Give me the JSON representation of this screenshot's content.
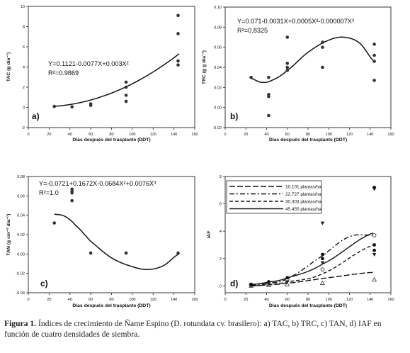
{
  "caption": {
    "label": "Figura 1.",
    "text": "Índices de crecimiento de Ñame Espino (D. rotundata cv. brasilero): a) TAC, b) TRC, c) TAN, d) IAF en función de cuatro densidades de siembra."
  },
  "chart_data": [
    {
      "panel": "a)",
      "type": "scatter",
      "xlabel": "Días después del trasplante (DDT)",
      "ylabel": "TAC (g día⁻¹)",
      "xlim": [
        0,
        160
      ],
      "ylim": [
        -2,
        10
      ],
      "xticks": [
        0,
        20,
        40,
        60,
        80,
        100,
        120,
        140,
        160
      ],
      "yticks": [
        -2,
        0,
        2,
        4,
        6,
        8,
        10
      ],
      "points": [
        [
          25,
          0.1
        ],
        [
          42,
          0.05
        ],
        [
          60,
          0.35
        ],
        [
          60,
          0.2
        ],
        [
          94,
          0.6
        ],
        [
          94,
          1.2
        ],
        [
          94,
          2.0
        ],
        [
          94,
          2.5
        ],
        [
          144,
          4.2
        ],
        [
          144,
          4.6
        ],
        [
          144,
          7.3
        ],
        [
          144,
          9.1
        ]
      ],
      "fit": {
        "coef": [
          0.1121,
          -0.0077,
          0.003
        ],
        "xrange": [
          25,
          145
        ]
      },
      "equation": "Y=0.1121-0.0077X+0.003X²",
      "r2": "R²=0.9869",
      "grid": false
    },
    {
      "panel": "b)",
      "type": "scatter",
      "xlabel": "Días después del trasplante (DDT)",
      "ylabel": "TRC (g g día⁻¹)",
      "xlim": [
        0,
        160
      ],
      "ylim": [
        -0.02,
        0.1
      ],
      "xticks": [
        0,
        20,
        40,
        60,
        80,
        100,
        120,
        140,
        160
      ],
      "yticks": [
        -0.02,
        0.0,
        0.02,
        0.04,
        0.06,
        0.08,
        0.1
      ],
      "points": [
        [
          25,
          0.03
        ],
        [
          42,
          0.03
        ],
        [
          42,
          0.013
        ],
        [
          42,
          0.011
        ],
        [
          42,
          -0.008
        ],
        [
          60,
          0.07
        ],
        [
          60,
          0.044
        ],
        [
          60,
          0.04
        ],
        [
          60,
          0.037
        ],
        [
          94,
          0.065
        ],
        [
          94,
          0.06
        ],
        [
          94,
          0.04
        ],
        [
          144,
          0.063
        ],
        [
          144,
          0.052
        ],
        [
          144,
          0.046
        ],
        [
          144,
          0.027
        ]
      ],
      "fit": {
        "coef": [
          0.071,
          -0.0031,
          0.0005,
          -7e-06
        ],
        "xrange": [
          25,
          145
        ]
      },
      "equation": "Y=0.071-0.0031X+0.0005X²-0.000007X³",
      "r2": "R²=0.8325",
      "grid": false
    },
    {
      "panel": "c)",
      "type": "scatter",
      "xlabel": "Días después del trasplante (DDT)",
      "ylabel": "TAN (g cm⁻² día⁻¹)",
      "xlim": [
        0,
        160
      ],
      "ylim": [
        -0.04,
        0.08
      ],
      "xticks": [
        0,
        20,
        40,
        60,
        80,
        100,
        120,
        140,
        160
      ],
      "yticks": [
        -0.04,
        -0.02,
        0.0,
        0.02,
        0.04,
        0.06,
        0.08
      ],
      "points": [
        [
          25,
          0.032
        ],
        [
          42,
          0.067
        ],
        [
          42,
          0.065
        ],
        [
          42,
          0.063
        ],
        [
          42,
          0.055
        ],
        [
          60,
          0.001
        ],
        [
          94,
          0.001
        ],
        [
          144,
          0.001
        ]
      ],
      "fit": {
        "coef": [
          -0.0721,
          0.1672,
          -0.0684,
          0.0076
        ],
        "xrange": [
          25,
          145
        ]
      },
      "equation": "Y=-0.0721+0.1672X-0.0684X²+0.0076X³",
      "r2": "R²=1.0",
      "grid": false
    },
    {
      "panel": "d)",
      "type": "line",
      "xlabel": "Días después del trasplante (DDT)",
      "ylabel": "IAF",
      "xlim": [
        0,
        160
      ],
      "ylim": [
        -0.5,
        8
      ],
      "xticks": [
        0,
        20,
        40,
        60,
        80,
        100,
        120,
        140,
        160
      ],
      "yticks": [
        0,
        2,
        4,
        6,
        8
      ],
      "legend_position": "top-left",
      "series": [
        {
          "name": "10.101 plantas/ha",
          "style": "longdash",
          "x": [
            25,
            42,
            60,
            94,
            144
          ],
          "y": [
            0.0,
            0.08,
            0.2,
            0.55,
            1.0
          ],
          "points": [
            [
              25,
              0
            ],
            [
              42,
              0.05
            ],
            [
              60,
              0.1
            ],
            [
              94,
              0.2
            ],
            [
              144,
              0.45
            ]
          ],
          "marker": "triangle-open"
        },
        {
          "name": "22.727 plantas/ha",
          "style": "dashdot",
          "x": [
            25,
            42,
            60,
            94,
            120,
            144
          ],
          "y": [
            0.05,
            0.2,
            0.55,
            2.2,
            3.6,
            3.7
          ],
          "points": [
            [
              25,
              0.1
            ],
            [
              42,
              0.15
            ],
            [
              60,
              0.5
            ],
            [
              94,
              1.2
            ],
            [
              144,
              3.7
            ]
          ],
          "marker": "circle-open"
        },
        {
          "name": "30.303 plantas/ha",
          "style": "dash",
          "x": [
            25,
            42,
            60,
            94,
            144
          ],
          "y": [
            0.0,
            0.1,
            0.3,
            0.9,
            3.0
          ],
          "points": [
            [
              25,
              0
            ],
            [
              42,
              0.2
            ],
            [
              60,
              0.3
            ],
            [
              94,
              1.7
            ],
            [
              94,
              4.6
            ],
            [
              144,
              2.3
            ],
            [
              144,
              7.1
            ]
          ],
          "marker": "triangle-down"
        },
        {
          "name": "45.455 plantas/ha",
          "style": "solid",
          "x": [
            25,
            42,
            60,
            94,
            144
          ],
          "y": [
            0.1,
            0.28,
            0.6,
            1.6,
            3.9
          ],
          "points": [
            [
              25,
              0.1
            ],
            [
              42,
              0.3
            ],
            [
              60,
              0.6
            ],
            [
              94,
              2.0
            ],
            [
              94,
              2.3
            ],
            [
              144,
              2.6
            ],
            [
              144,
              3.0
            ],
            [
              144,
              7.2
            ]
          ],
          "marker": "circle-filled"
        }
      ],
      "grid": false
    }
  ]
}
